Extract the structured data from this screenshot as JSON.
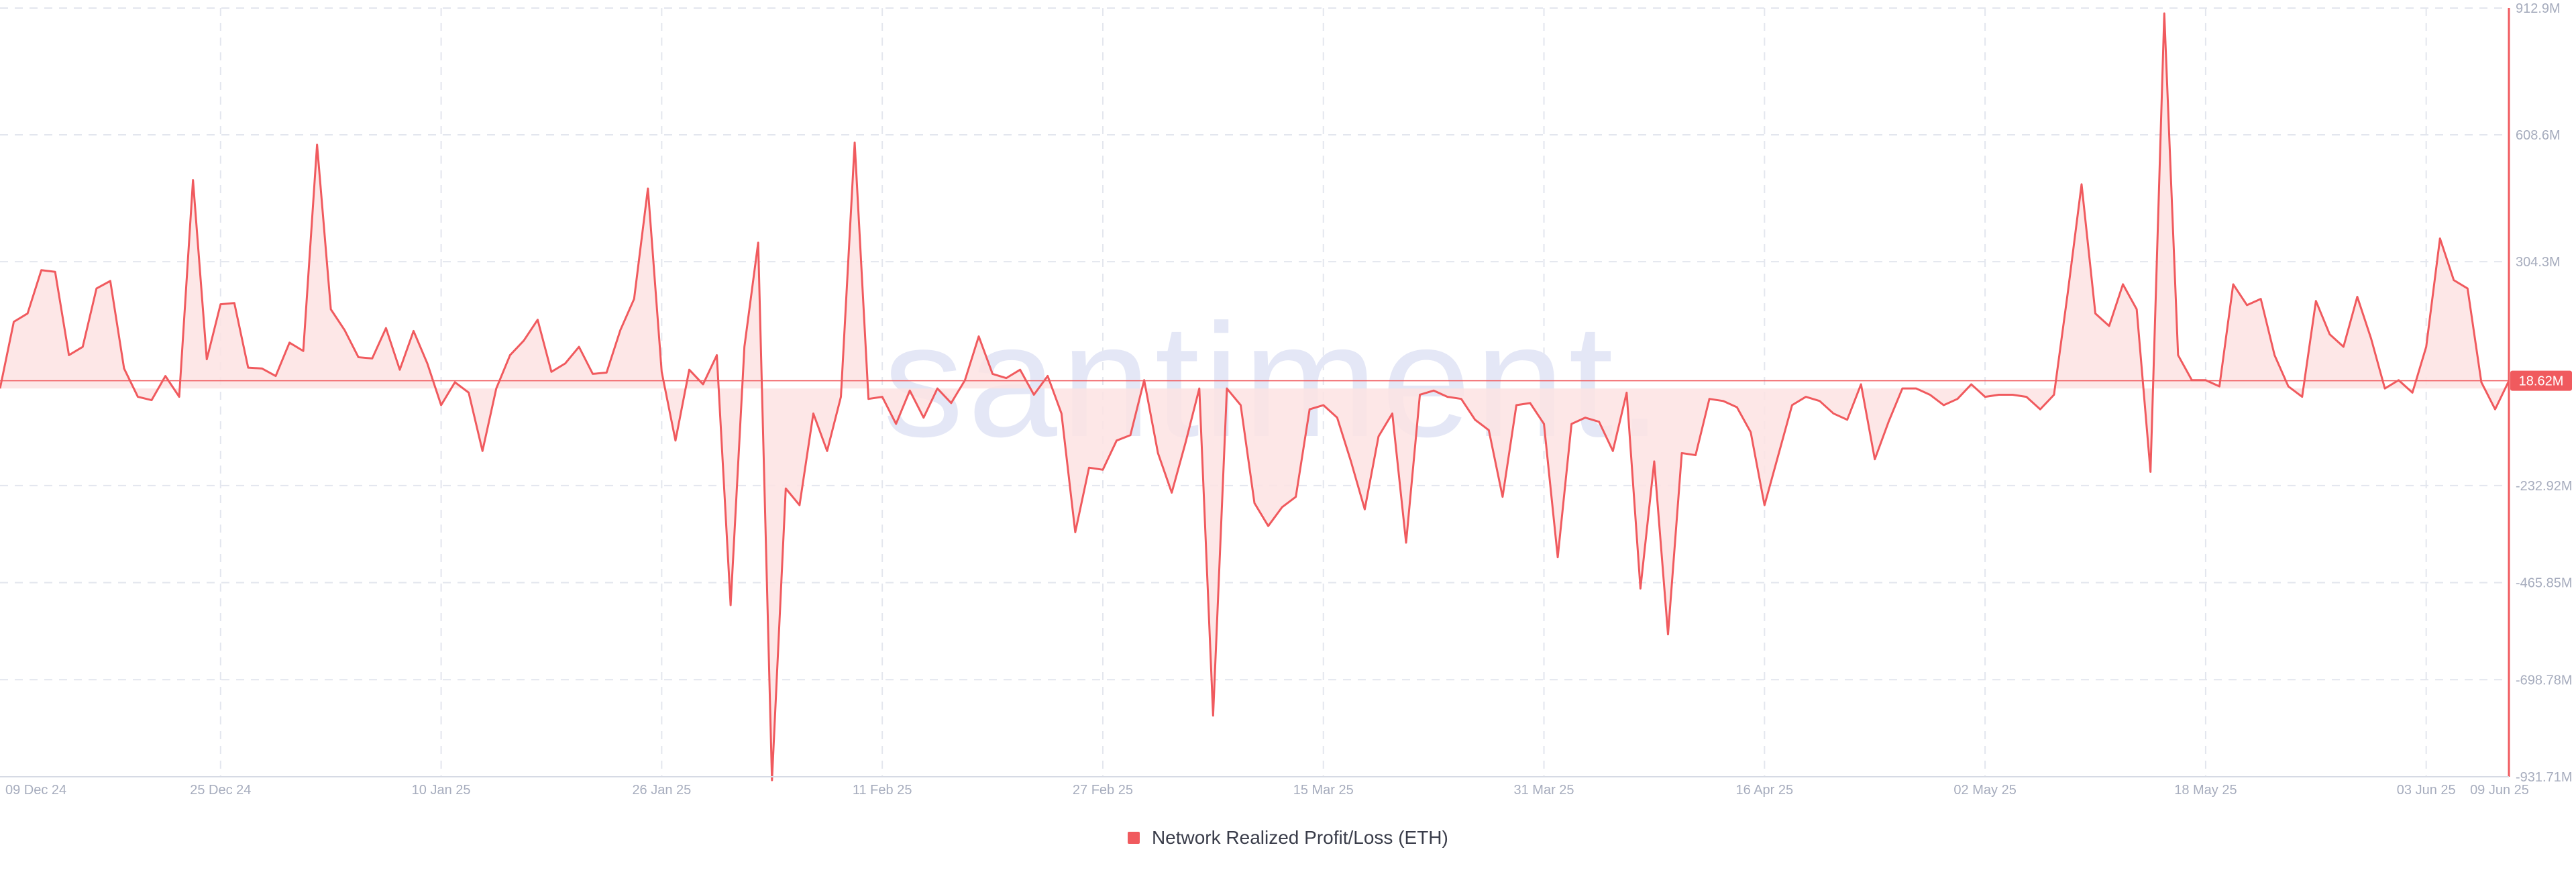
{
  "watermark": "santiment.",
  "colors": {
    "series": "#f05a5e",
    "fill": "#fde3e3",
    "grid": "#e3e6ee",
    "tick": "#a6acbd",
    "watermark": "#e4e7f6"
  },
  "chart_data": {
    "type": "area",
    "title": "",
    "grid": true,
    "legend_position": "bottom-center",
    "y_axis_position": "right",
    "ylim": [
      -931.71,
      912.9
    ],
    "y_unit": "M",
    "y_ticks": [
      "912.9M",
      "608.6M",
      "304.3M",
      "-232.92M",
      "-465.85M",
      "-698.78M",
      "-931.71M"
    ],
    "y_tick_values": [
      912.9,
      608.6,
      304.3,
      -232.92,
      -465.85,
      -698.78,
      -931.71
    ],
    "x_ticks": [
      "09 Dec 24",
      "25 Dec 24",
      "10 Jan 25",
      "26 Jan 25",
      "11 Feb 25",
      "27 Feb 25",
      "15 Mar 25",
      "31 Mar 25",
      "16 Apr 25",
      "02 May 25",
      "18 May 25",
      "03 Jun 25",
      "09 Jun 25"
    ],
    "x_start": "2024-12-09",
    "x_end": "2025-06-09",
    "current_value_label": "18.62M",
    "current_value": 18.62,
    "series": [
      {
        "name": "Network Realized Profit/Loss (ETH)",
        "values": [
          0,
          160,
          180,
          284,
          280,
          80,
          100,
          240,
          258,
          48,
          -20,
          -28,
          30,
          -20,
          500,
          70,
          202,
          205,
          50,
          48,
          30,
          110,
          90,
          585,
          190,
          140,
          75,
          72,
          145,
          45,
          138,
          60,
          -40,
          15,
          -10,
          -150,
          0,
          80,
          115,
          165,
          40,
          60,
          100,
          35,
          38,
          140,
          215,
          480,
          40,
          -125,
          45,
          10,
          80,
          -520,
          100,
          350,
          -940,
          -240,
          -280,
          -60,
          -150,
          -20,
          590,
          -25,
          -20,
          -85,
          -5,
          -70,
          0,
          -35,
          20,
          125,
          35,
          25,
          45,
          -15,
          30,
          -60,
          -345,
          -190,
          -195,
          -125,
          -112,
          20,
          -155,
          -250,
          -130,
          0,
          -785,
          0,
          -40,
          -275,
          -330,
          -285,
          -260,
          -50,
          -40,
          -70,
          -175,
          -290,
          -115,
          -60,
          -370,
          -15,
          -5,
          -20,
          -25,
          -75,
          -100,
          -260,
          -40,
          -35,
          -85,
          -405,
          -85,
          -70,
          -80,
          -150,
          -10,
          -480,
          -175,
          -590,
          -155,
          -160,
          -25,
          -30,
          -45,
          -105,
          -280,
          -160,
          -40,
          -20,
          -30,
          -60,
          -75,
          10,
          -170,
          -80,
          0,
          0,
          -15,
          -40,
          -25,
          10,
          -20,
          -15,
          -15,
          -20,
          -50,
          -15,
          230,
          490,
          180,
          150,
          250,
          190,
          -200,
          900,
          80,
          20,
          20,
          5,
          250,
          200,
          215,
          80,
          5,
          -20,
          210,
          130,
          100,
          220,
          120,
          0,
          20,
          -10,
          100,
          360,
          260,
          240,
          15,
          -50,
          18.62
        ]
      }
    ]
  }
}
